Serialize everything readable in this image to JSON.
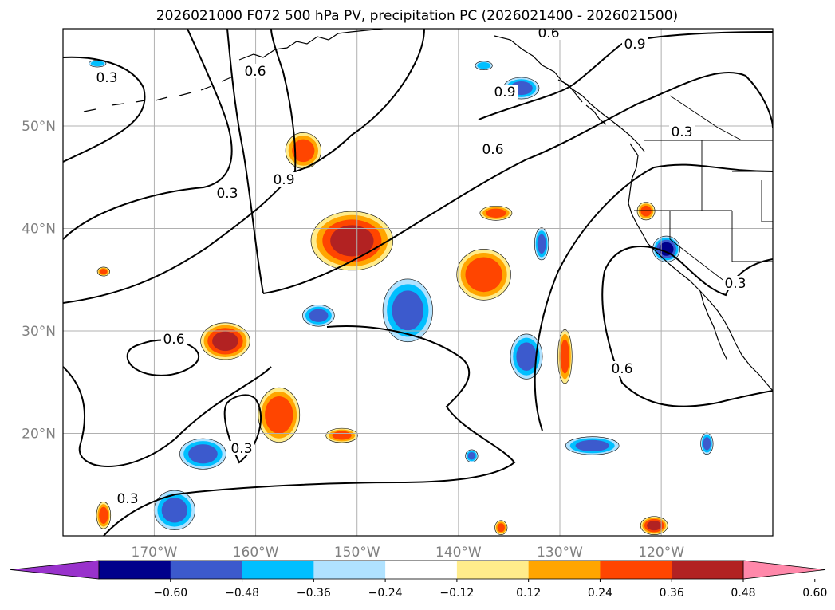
{
  "chart_data": {
    "type": "contour_map",
    "title": "2026021000 F072 500 hPa PV, precipitation PC (2026021400 - 2026021500)",
    "projection": "PlateCarree",
    "extent": {
      "lon": [
        -179,
        -109
      ],
      "lat": [
        10,
        59.5
      ]
    },
    "grid": true,
    "x_ticks": [
      {
        "value": -170,
        "label": "170°W"
      },
      {
        "value": -160,
        "label": "160°W"
      },
      {
        "value": -150,
        "label": "150°W"
      },
      {
        "value": -140,
        "label": "140°W"
      },
      {
        "value": -130,
        "label": "130°W"
      },
      {
        "value": -120,
        "label": "120°W"
      }
    ],
    "y_ticks": [
      {
        "value": 20,
        "label": "20°N"
      },
      {
        "value": 30,
        "label": "30°N"
      },
      {
        "value": 40,
        "label": "40°N"
      },
      {
        "value": 50,
        "label": "50°N"
      }
    ],
    "colorbar": {
      "orientation": "horizontal",
      "extend": "both",
      "levels": [
        -0.72,
        -0.6,
        -0.48,
        -0.36,
        -0.24,
        -0.12,
        0.12,
        0.24,
        0.36,
        0.48,
        0.6,
        0.72
      ],
      "colors": [
        "#9932cc",
        "#00008b",
        "#3c5acd",
        "#00bfff",
        "#b0e2ff",
        "#ffffff",
        "#ffec8b",
        "#ffa500",
        "#ff4500",
        "#b22222",
        "#ff88aa"
      ],
      "tick_labels": [
        "−0.60",
        "−0.48",
        "−0.36",
        "−0.24",
        "−0.12",
        "0.12",
        "0.24",
        "0.36",
        "0.48",
        "0.60"
      ]
    },
    "contour_labels": [
      "0.3",
      "0.3",
      "0.6",
      "0.9",
      "0.3",
      "0.6",
      "0.9",
      "0.6",
      "0.3",
      "0.6",
      "0.3",
      "0.6",
      "0.3",
      "0.9"
    ],
    "positive_anomalies": [
      {
        "name": "pos-a",
        "center": [
          -155.3,
          47.6
        ],
        "rx": 2.0,
        "ry": 2.0,
        "peak": 0.4
      },
      {
        "name": "pos-b",
        "center": [
          -150.5,
          38.8
        ],
        "rx": 4.5,
        "ry": 3.2,
        "peak": 0.5
      },
      {
        "name": "pos-c",
        "center": [
          -163.0,
          29.0
        ],
        "rx": 2.7,
        "ry": 2.0,
        "peak": 0.5
      },
      {
        "name": "pos-d",
        "center": [
          -157.7,
          21.8
        ],
        "rx": 2.3,
        "ry": 3.0,
        "peak": 0.45
      },
      {
        "name": "pos-e",
        "center": [
          -137.5,
          35.5
        ],
        "rx": 3.0,
        "ry": 2.8,
        "peak": 0.45
      },
      {
        "name": "pos-f",
        "center": [
          -136.3,
          41.5
        ],
        "rx": 1.8,
        "ry": 0.8,
        "peak": 0.4
      },
      {
        "name": "pos-g",
        "center": [
          -129.5,
          27.5
        ],
        "rx": 0.8,
        "ry": 3.0,
        "peak": 0.4
      },
      {
        "name": "pos-h",
        "center": [
          -151.5,
          19.8
        ],
        "rx": 1.8,
        "ry": 0.8,
        "peak": 0.38
      },
      {
        "name": "pos-i",
        "center": [
          -121.5,
          41.7
        ],
        "rx": 1.0,
        "ry": 1.0,
        "peak": 0.38
      },
      {
        "name": "pos-j",
        "center": [
          -120.7,
          11.0
        ],
        "rx": 1.5,
        "ry": 1.0,
        "peak": 0.5
      },
      {
        "name": "pos-k",
        "center": [
          -175.0,
          12.0
        ],
        "rx": 0.8,
        "ry": 1.5,
        "peak": 0.4
      },
      {
        "name": "pos-l",
        "center": [
          -175.0,
          35.8
        ],
        "rx": 0.7,
        "ry": 0.5,
        "peak": 0.38
      },
      {
        "name": "pos-m",
        "center": [
          -135.8,
          10.8
        ],
        "rx": 0.7,
        "ry": 0.8,
        "peak": 0.38
      }
    ],
    "negative_anomalies": [
      {
        "name": "neg-a",
        "center": [
          -145.0,
          32.0
        ],
        "rx": 2.8,
        "ry": 3.5,
        "peak": -0.4
      },
      {
        "name": "neg-b",
        "center": [
          -153.8,
          31.5
        ],
        "rx": 1.8,
        "ry": 1.2,
        "peak": -0.38
      },
      {
        "name": "neg-c",
        "center": [
          -133.3,
          27.5
        ],
        "rx": 1.8,
        "ry": 2.5,
        "peak": -0.4
      },
      {
        "name": "neg-d",
        "center": [
          -165.2,
          18.0
        ],
        "rx": 2.6,
        "ry": 1.7,
        "peak": -0.4
      },
      {
        "name": "neg-e",
        "center": [
          -168.0,
          12.5
        ],
        "rx": 2.3,
        "ry": 2.2,
        "peak": -0.4
      },
      {
        "name": "neg-f",
        "center": [
          -126.8,
          18.8
        ],
        "rx": 3.0,
        "ry": 1.0,
        "peak": -0.4
      },
      {
        "name": "neg-g",
        "center": [
          -119.5,
          38.0
        ],
        "rx": 1.5,
        "ry": 1.4,
        "peak": -0.5
      },
      {
        "name": "neg-h",
        "center": [
          -131.8,
          38.5
        ],
        "rx": 0.8,
        "ry": 1.8,
        "peak": -0.38
      },
      {
        "name": "neg-i",
        "center": [
          -133.8,
          53.7
        ],
        "rx": 2.0,
        "ry": 1.2,
        "peak": -0.4
      },
      {
        "name": "neg-j",
        "center": [
          -115.5,
          19.0
        ],
        "rx": 0.7,
        "ry": 1.2,
        "peak": -0.38
      },
      {
        "name": "neg-k",
        "center": [
          -138.7,
          17.8
        ],
        "rx": 0.7,
        "ry": 0.7,
        "peak": -0.38
      },
      {
        "name": "neg-l",
        "center": [
          -175.6,
          56.1
        ],
        "rx": 1.0,
        "ry": 0.4,
        "peak": -0.3
      },
      {
        "name": "neg-m",
        "center": [
          -137.5,
          55.9
        ],
        "rx": 1.0,
        "ry": 0.5,
        "peak": -0.3
      }
    ]
  }
}
